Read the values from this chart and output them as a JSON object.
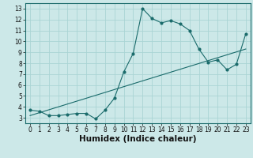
{
  "title": "",
  "xlabel": "Humidex (Indice chaleur)",
  "background_color": "#cce8e8",
  "grid_color": "#aad4d4",
  "line_color": "#1a6b6b",
  "x_data": [
    0,
    1,
    2,
    3,
    4,
    5,
    6,
    7,
    8,
    9,
    10,
    11,
    12,
    13,
    14,
    15,
    16,
    17,
    18,
    19,
    20,
    21,
    22,
    23
  ],
  "y_data": [
    3.7,
    3.6,
    3.2,
    3.2,
    3.3,
    3.4,
    3.4,
    2.9,
    3.7,
    4.8,
    7.2,
    8.9,
    13.0,
    12.1,
    11.7,
    11.9,
    11.6,
    11.0,
    9.3,
    8.1,
    8.3,
    7.4,
    7.9,
    10.7
  ],
  "trend_y_start": 3.2,
  "trend_y_end": 9.3,
  "xlim": [
    -0.5,
    23.5
  ],
  "ylim": [
    2.5,
    13.5
  ],
  "xticks": [
    0,
    1,
    2,
    3,
    4,
    5,
    6,
    7,
    8,
    9,
    10,
    11,
    12,
    13,
    14,
    15,
    16,
    17,
    18,
    19,
    20,
    21,
    22,
    23
  ],
  "yticks": [
    3,
    4,
    5,
    6,
    7,
    8,
    9,
    10,
    11,
    12,
    13
  ],
  "tick_fontsize": 5.5,
  "xlabel_fontsize": 7.5
}
